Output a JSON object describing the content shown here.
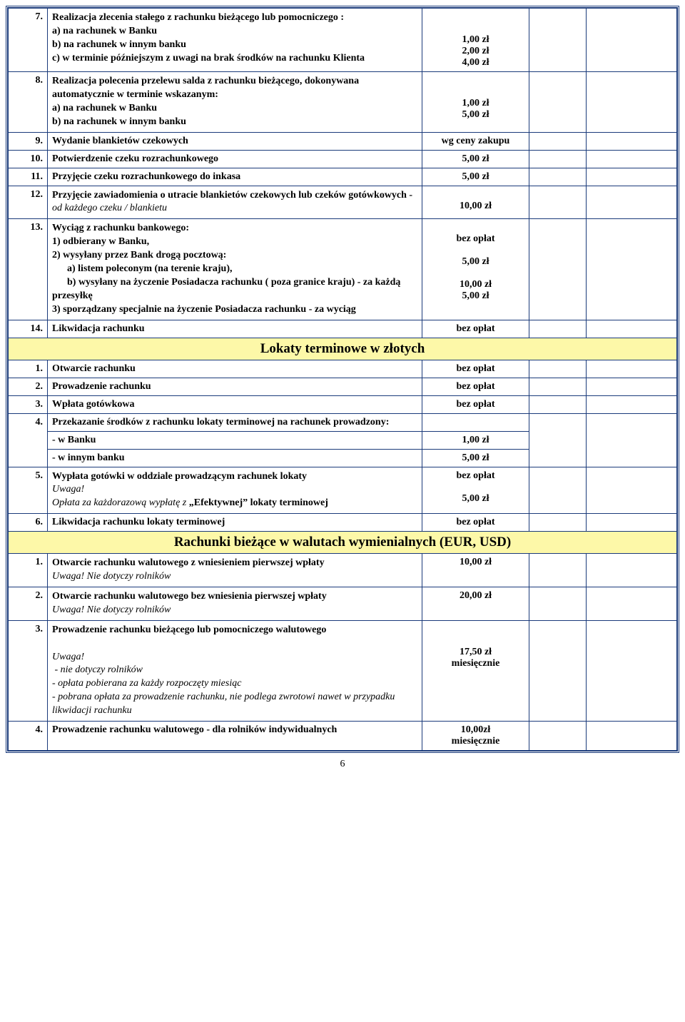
{
  "colors": {
    "border": "#1a3a7a",
    "section_bg": "#fdf8a8",
    "text": "#000000",
    "page_bg": "#ffffff"
  },
  "page_number": "6",
  "rows": [
    {
      "num": "7.",
      "desc_lines": [
        "Realizacja zlecenia stałego z rachunku bieżącego lub pomocniczego :",
        "a)  na rachunek w Banku",
        "b)  na rachunek w innym banku",
        "c)  w terminie późniejszym z uwagi na brak środków na rachunku Klienta"
      ],
      "val_lines": [
        "",
        "",
        "1,00 zł",
        "2,00 zł",
        "4,00 zł"
      ]
    },
    {
      "num": "8.",
      "desc_lines": [
        "Realizacja polecenia przelewu salda z rachunku bieżącego, dokonywana automatycznie  w terminie wskazanym:",
        "a)  na rachunek w Banku",
        "b)  na rachunek w innym banku"
      ],
      "val_lines": [
        "",
        "",
        "1,00 zł",
        "5,00 zł"
      ]
    },
    {
      "num": "9.",
      "desc": "Wydanie blankietów czekowych",
      "val": "wg ceny zakupu"
    },
    {
      "num": "10.",
      "desc": "Potwierdzenie czeku rozrachunkowego",
      "val": "5,00 zł"
    },
    {
      "num": "11.",
      "desc": "Przyjęcie czeku rozrachunkowego do inkasa",
      "val": "5,00 zł"
    },
    {
      "num": "12.",
      "desc_html": "Przyjęcie zawiadomienia o utracie blankietów czekowych lub czeków gotówkowych - <span class=\"italic\">od każdego czeku / blankietu</span>",
      "val_lines": [
        "",
        "10,00 zł"
      ]
    },
    {
      "num": "13.",
      "desc_lines": [
        "Wyciąg z rachunku bankowego:",
        "1)   odbierany w Banku,",
        "2)   wysyłany przez Bank  drogą pocztową:",
        "      a) listem poleconym (na terenie kraju),",
        "      b) wysyłany na życzenie Posiadacza rachunku ( poza granice kraju) - za każdą przesyłkę",
        "3)  sporządzany specjalnie na życzenie Posiadacza rachunku  - za wyciąg"
      ],
      "val_lines": [
        "",
        "bez opłat",
        "",
        "5,00 zł",
        "",
        "10,00 zł",
        "5,00 zł"
      ]
    },
    {
      "num": "14.",
      "desc": "Likwidacja rachunku",
      "val": "bez opłat"
    }
  ],
  "section1": "Lokaty terminowe w złotych",
  "rows2": [
    {
      "num": "1.",
      "desc": "Otwarcie rachunku",
      "val": "bez opłat"
    },
    {
      "num": "2.",
      "desc": "Prowadzenie rachunku",
      "val": "bez opłat"
    },
    {
      "num": "3.",
      "desc": "Wpłata gotówkowa",
      "val": "bez opłat"
    },
    {
      "num": "4.",
      "subrows": [
        {
          "desc": "Przekazanie środków z rachunku lokaty terminowej na rachunek prowadzony:",
          "val": ""
        },
        {
          "desc": "- w Banku",
          "val": "1,00 zł"
        },
        {
          "desc": "- w innym banku",
          "val": "5,00 zł"
        }
      ]
    },
    {
      "num": "5.",
      "desc_html": "Wypłata gotówki w oddziale prowadzącym rachunek lokaty<br><span class=\"italic\">Uwaga!<br>Opłata za każdorazową wypłatę z</span> „Efektywnej” lokaty terminowej",
      "val_lines": [
        "bez opłat",
        "",
        "5,00 zł"
      ]
    },
    {
      "num": "6.",
      "desc": "Likwidacja rachunku lokaty terminowej",
      "val": "bez opłat"
    }
  ],
  "section2": "Rachunki bieżące w walutach wymienialnych (EUR, USD)",
  "rows3": [
    {
      "num": "1.",
      "desc_html": "Otwarcie rachunku walutowego z wniesieniem pierwszej wpłaty<br><span class=\"italic\">Uwaga! Nie dotyczy rolników</span>",
      "val": "10,00 zł"
    },
    {
      "num": "2.",
      "desc_html": "Otwarcie rachunku walutowego bez wniesienia pierwszej wpłaty<br><span class=\"italic\">Uwaga! Nie dotyczy rolników</span>",
      "val": "20,00 zł"
    },
    {
      "num": "3.",
      "desc_html": "Prowadzenie rachunku bieżącego lub pomocniczego walutowego<br><br><span class=\"italic\">Uwaga!<br>&nbsp;-  nie dotyczy rolników<br>- opłata pobierana za każdy rozpoczęty miesiąc<br>- pobrana opłata za prowadzenie rachunku, nie podlega  zwrotowi nawet w przypadku likwidacji rachunku</span>",
      "val_lines": [
        "",
        "",
        "17,50 zł",
        "miesięcznie"
      ]
    },
    {
      "num": "4.",
      "desc": "Prowadzenie rachunku walutowego  -  dla rolników indywidualnych",
      "val_lines": [
        "10,00zł",
        "miesięcznie"
      ]
    }
  ]
}
